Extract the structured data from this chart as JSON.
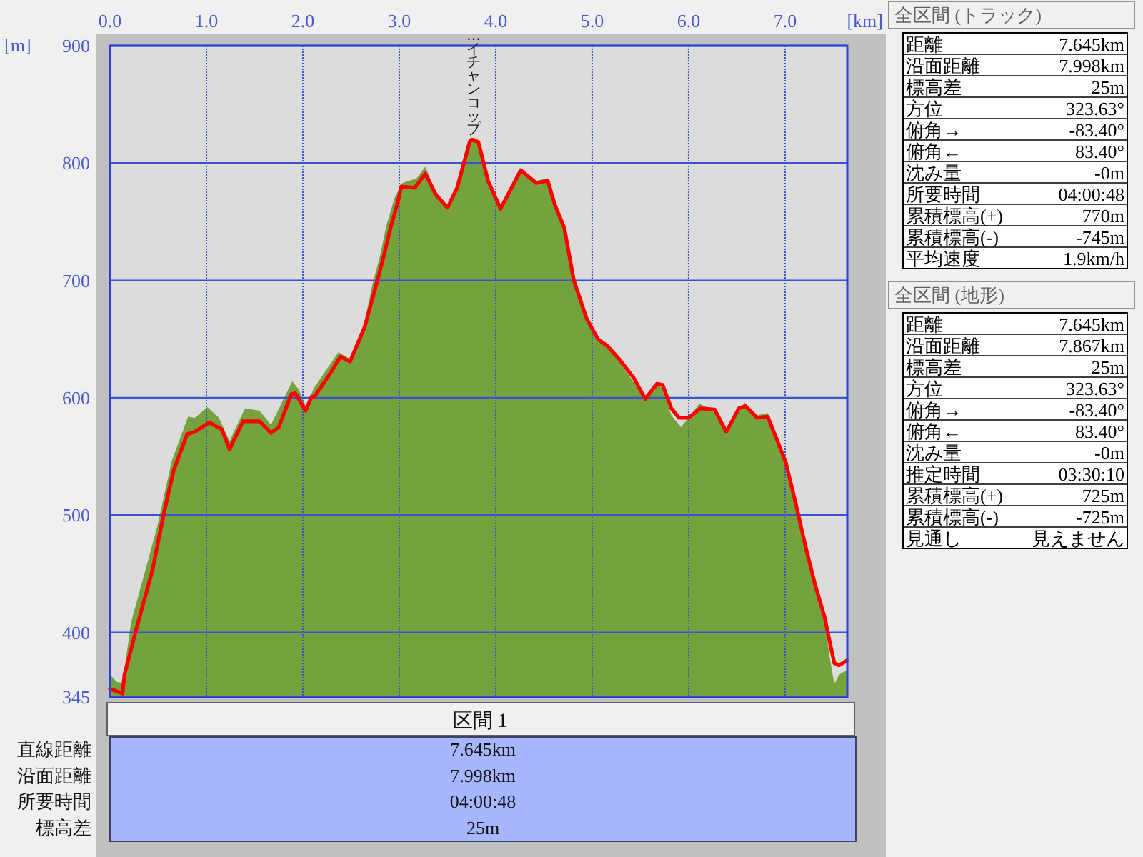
{
  "chart_data": [
    {
      "type": "area",
      "xlabel": "[km]",
      "ylabel": "[m]",
      "xlim": [
        0,
        7.645
      ],
      "xticks": [
        {
          "value": 0,
          "label": "0.0"
        },
        {
          "value": 1,
          "label": "1.0"
        },
        {
          "value": 2,
          "label": "2.0"
        },
        {
          "value": 3,
          "label": "3.0"
        },
        {
          "value": 4,
          "label": "4.0"
        },
        {
          "value": 5,
          "label": "5.0"
        },
        {
          "value": 6,
          "label": "6.0"
        },
        {
          "value": 7,
          "label": "7.0"
        }
      ],
      "ylim": [
        345,
        900
      ],
      "yticks": [
        345,
        400,
        500,
        600,
        700,
        800,
        900
      ],
      "grid": true,
      "annotations": [
        {
          "text": "…イチャンコップ",
          "x": 3.77,
          "y": 820
        }
      ],
      "series": [
        {
          "type": "area",
          "color": "#74a33d",
          "x": [
            0,
            0.07,
            0.13,
            0.22,
            0.34,
            0.49,
            0.64,
            0.81,
            0.88,
            1.01,
            1.13,
            1.24,
            1.4,
            1.55,
            1.67,
            1.89,
            1.96,
            2.03,
            2.12,
            2.37,
            2.49,
            2.64,
            2.72,
            2.8,
            2.87,
            2.95,
            3.03,
            3.18,
            3.27,
            3.38,
            3.5,
            3.6,
            3.73,
            3.77,
            3.82,
            3.92,
            4.05,
            4.26,
            4.42,
            4.54,
            4.61,
            4.71,
            4.81,
            4.94,
            5.06,
            5.16,
            5.28,
            5.43,
            5.55,
            5.67,
            5.73,
            5.82,
            5.92,
            6.0,
            6.11,
            6.27,
            6.39,
            6.58,
            6.71,
            6.82,
            6.94,
            7.01,
            7.11,
            7.21,
            7.31,
            7.41,
            7.46,
            7.51,
            7.56,
            7.64
          ],
          "values": [
            364,
            358,
            357,
            409,
            445,
            490,
            546,
            584,
            583,
            592,
            583,
            563,
            591,
            589,
            577,
            614,
            607,
            593,
            609,
            639,
            633,
            664,
            696,
            721,
            748,
            770,
            783,
            787,
            797,
            775,
            762,
            781,
            819,
            822,
            819,
            787,
            762,
            795,
            785,
            787,
            767,
            747,
            702,
            670,
            648,
            645,
            631,
            613,
            600,
            612,
            608,
            585,
            575,
            583,
            595,
            589,
            570,
            596,
            585,
            587,
            560,
            546,
            512,
            476,
            443,
            412,
            380,
            356,
            364,
            368
          ]
        },
        {
          "type": "line",
          "color": "#ff0000",
          "x": [
            0,
            0.13,
            0.15,
            0.27,
            0.44,
            0.56,
            0.66,
            0.8,
            0.88,
            1.03,
            1.16,
            1.24,
            1.38,
            1.55,
            1.67,
            1.75,
            1.88,
            1.92,
            2.03,
            2.09,
            2.12,
            2.27,
            2.39,
            2.49,
            2.64,
            2.76,
            2.84,
            2.91,
            2.98,
            3.02,
            3.16,
            3.27,
            3.38,
            3.5,
            3.6,
            3.73,
            3.75,
            3.82,
            3.92,
            4.05,
            4.26,
            4.42,
            4.54,
            4.61,
            4.71,
            4.81,
            4.94,
            5.06,
            5.16,
            5.28,
            5.43,
            5.55,
            5.67,
            5.73,
            5.82,
            5.9,
            6.0,
            6.12,
            6.27,
            6.39,
            6.52,
            6.59,
            6.71,
            6.82,
            6.94,
            7.01,
            7.11,
            7.21,
            7.31,
            7.41,
            7.46,
            7.51,
            7.56,
            7.64
          ],
          "values": [
            352,
            348,
            364,
            402,
            453,
            502,
            538,
            569,
            571,
            579,
            573,
            556,
            580,
            580,
            570,
            575,
            603,
            604,
            589,
            601,
            601,
            619,
            635,
            631,
            660,
            696,
            721,
            745,
            765,
            780,
            779,
            791,
            773,
            762,
            779,
            818,
            820,
            818,
            785,
            761,
            794,
            783,
            785,
            765,
            745,
            700,
            668,
            650,
            644,
            633,
            617,
            599,
            612,
            611,
            591,
            583,
            583,
            591,
            590,
            571,
            591,
            593,
            583,
            584,
            559,
            544,
            510,
            474,
            441,
            413,
            393,
            374,
            372,
            376
          ]
        }
      ]
    },
    {
      "type": "other",
      "title": "区間 1",
      "annotations": [
        "直線距離",
        "7.645km",
        "沿面距離",
        "7.998km",
        "所要時間",
        "04:00:48",
        "標高差",
        "25m"
      ]
    },
    {
      "type": "other",
      "title": "全区間 (トラック)",
      "annotations": [
        "距離",
        "7.645km",
        "沿面距離",
        "7.998km",
        "標高差",
        "25m",
        "方位",
        "323.63°",
        "俯角→",
        "-83.40°",
        "俯角←",
        "83.40°",
        "沈み量",
        "-0m",
        "所要時間",
        "04:00:48",
        "累積標高(+)",
        "770m",
        "累積標高(-)",
        "-745m",
        "平均速度",
        "1.9km/h"
      ]
    },
    {
      "type": "other",
      "title": "全区間 (地形)",
      "annotations": [
        "距離",
        "7.645km",
        "沿面距離",
        "7.867km",
        "標高差",
        "25m",
        "方位",
        "323.63°",
        "俯角→",
        "-83.40°",
        "俯角←",
        "83.40°",
        "沈み量",
        "-0m",
        "推定時間",
        "03:30:10",
        "累積標高(+)",
        "725m",
        "累積標高(-)",
        "-725m",
        "見通し",
        "見えません"
      ]
    }
  ]
}
